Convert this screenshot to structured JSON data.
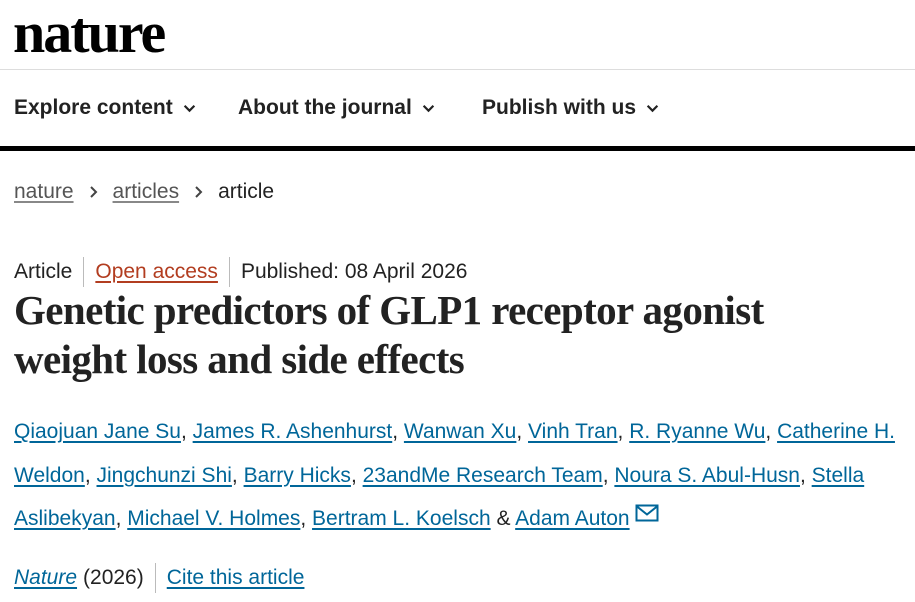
{
  "site": {
    "logo": "nature"
  },
  "nav": {
    "items": [
      {
        "label": "Explore content"
      },
      {
        "label": "About the journal"
      },
      {
        "label": "Publish with us"
      }
    ]
  },
  "breadcrumb": {
    "items": [
      "nature",
      "articles",
      "article"
    ]
  },
  "article": {
    "type": "Article",
    "access": "Open access",
    "published": "Published: 08 April 2026",
    "title_line1": "Genetic predictors of GLP1 receptor agonist",
    "title_line2": "weight loss and side effects",
    "authors": [
      "Qiaojuan Jane Su",
      "James R. Ashenhurst",
      "Wanwan Xu",
      "Vinh Tran",
      "R. Ryanne Wu",
      "Catherine H. Weldon",
      "Jingchunzi Shi",
      "Barry Hicks",
      "23andMe Research Team",
      "Noura S. Abul-Husn",
      "Stella Aslibekyan",
      "Michael V. Holmes",
      "Bertram L. Koelsch",
      "Adam Auton"
    ],
    "author_separator": ", ",
    "author_last_separator": " & ",
    "journal": "Nature",
    "year": "(2026)",
    "cite_label": "Cite this article"
  },
  "colors": {
    "link": "#006699",
    "open_access": "#b23d20",
    "text": "#222222"
  },
  "icons": {
    "nav_chevron": "chevron-down-icon",
    "breadcrumb_separator": "chevron-right-icon",
    "corresponding_author": "envelope-icon"
  }
}
